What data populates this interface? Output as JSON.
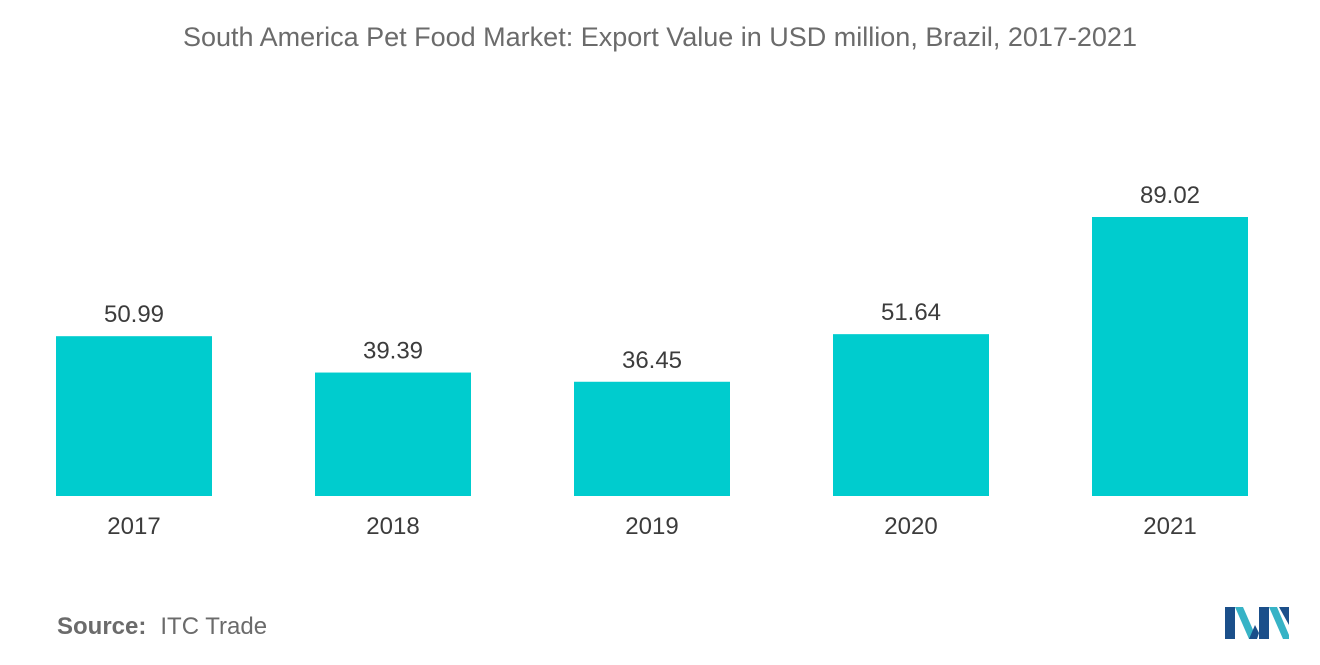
{
  "chart_data": {
    "type": "bar",
    "title": "South America Pet Food Market: Export Value in USD million, Brazil, 2017-2021",
    "categories": [
      "2017",
      "2018",
      "2019",
      "2020",
      "2021"
    ],
    "values": [
      50.99,
      39.39,
      36.45,
      51.64,
      89.02
    ],
    "value_labels": [
      "50.99",
      "39.39",
      "36.45",
      "51.64",
      "89.02"
    ],
    "xlabel": "",
    "ylabel": "",
    "ylim": [
      0,
      89.02
    ],
    "grid": false,
    "legend": "none",
    "bar_color": "#00ccce"
  },
  "source": {
    "label": "Source:",
    "text": "ITC Trade"
  },
  "logo": {
    "icon": "mordor-intelligence-logo-icon",
    "colors": [
      "#1b4f8a",
      "#37b3c6"
    ]
  }
}
